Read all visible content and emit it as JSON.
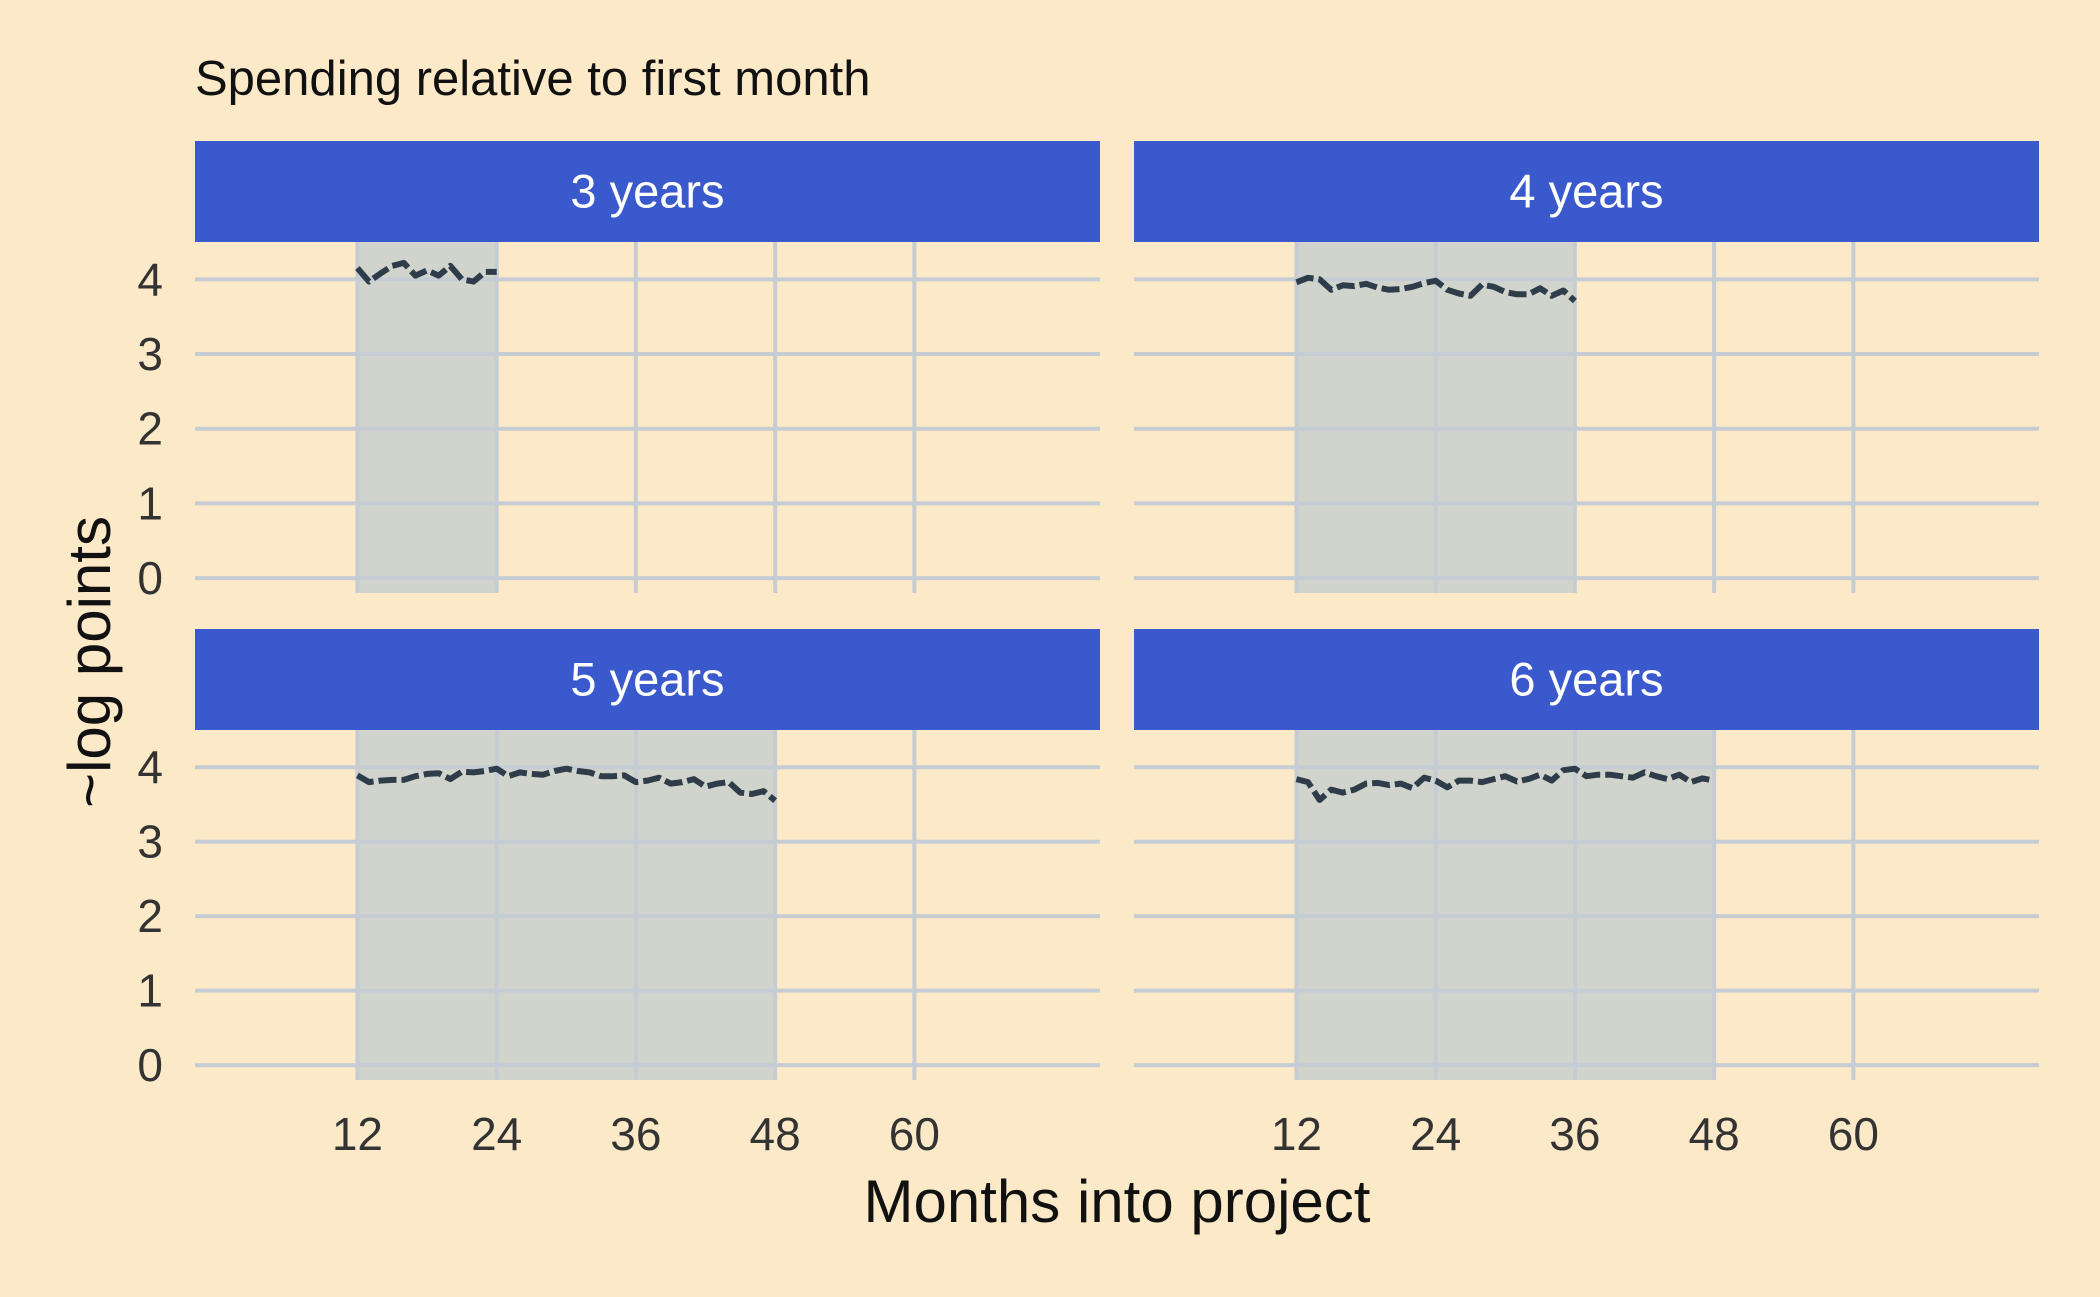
{
  "chart_data": {
    "type": "line",
    "title": "Spending relative to first month",
    "xlabel": "Months into project",
    "ylabel": "~log points",
    "x_ticks": [
      12,
      24,
      36,
      48,
      60
    ],
    "y_ticks": [
      0,
      1,
      2,
      3,
      4
    ],
    "xlim": [
      -2,
      76
    ],
    "ylim": [
      -0.2,
      4.5
    ],
    "grid": true,
    "colors": {
      "background": "#fce9c8",
      "strip": "#3a59cc",
      "line": "#2f3d4a",
      "shade": "#adc3cf",
      "grid": "#c6ccd4"
    },
    "panels": [
      {
        "label": "3 years",
        "shade": [
          12,
          24
        ],
        "x": [
          12,
          13,
          14,
          15,
          16,
          17,
          18,
          19,
          20,
          21,
          22,
          23,
          24
        ],
        "y": [
          4.15,
          3.97,
          4.08,
          4.18,
          4.22,
          4.05,
          4.12,
          4.05,
          4.18,
          4.0,
          3.97,
          4.1,
          4.1
        ]
      },
      {
        "label": "4 years",
        "shade": [
          12,
          36
        ],
        "x": [
          12,
          13,
          14,
          15,
          16,
          17,
          18,
          19,
          20,
          21,
          22,
          23,
          24,
          25,
          26,
          27,
          28,
          29,
          30,
          31,
          32,
          33,
          34,
          35,
          36
        ],
        "y": [
          3.96,
          4.02,
          4.0,
          3.86,
          3.92,
          3.91,
          3.94,
          3.89,
          3.86,
          3.87,
          3.9,
          3.95,
          3.98,
          3.86,
          3.81,
          3.78,
          3.93,
          3.9,
          3.83,
          3.8,
          3.8,
          3.88,
          3.78,
          3.85,
          3.71
        ]
      },
      {
        "label": "5 years",
        "shade": [
          12,
          48
        ],
        "x": [
          12,
          13,
          14,
          15,
          16,
          17,
          18,
          19,
          20,
          21,
          22,
          23,
          24,
          25,
          26,
          27,
          28,
          29,
          30,
          31,
          32,
          33,
          34,
          35,
          36,
          37,
          38,
          39,
          40,
          41,
          42,
          43,
          44,
          45,
          46,
          47,
          48
        ],
        "y": [
          3.89,
          3.8,
          3.82,
          3.83,
          3.83,
          3.88,
          3.91,
          3.92,
          3.84,
          3.94,
          3.93,
          3.95,
          3.98,
          3.88,
          3.93,
          3.91,
          3.9,
          3.95,
          3.98,
          3.95,
          3.93,
          3.88,
          3.88,
          3.89,
          3.8,
          3.82,
          3.86,
          3.78,
          3.8,
          3.84,
          3.74,
          3.78,
          3.8,
          3.66,
          3.64,
          3.68,
          3.55
        ]
      },
      {
        "label": "6 years",
        "shade": [
          12,
          48
        ],
        "x": [
          12,
          13,
          14,
          15,
          16,
          17,
          18,
          19,
          20,
          21,
          22,
          23,
          24,
          25,
          26,
          27,
          28,
          29,
          30,
          31,
          32,
          33,
          34,
          35,
          36,
          37,
          38,
          39,
          40,
          41,
          42,
          43,
          44,
          45,
          46,
          47,
          48
        ],
        "y": [
          3.84,
          3.8,
          3.56,
          3.7,
          3.66,
          3.7,
          3.78,
          3.79,
          3.76,
          3.78,
          3.72,
          3.86,
          3.82,
          3.73,
          3.82,
          3.82,
          3.8,
          3.84,
          3.88,
          3.81,
          3.84,
          3.9,
          3.82,
          3.96,
          3.98,
          3.88,
          3.9,
          3.9,
          3.88,
          3.86,
          3.93,
          3.88,
          3.84,
          3.9,
          3.8,
          3.85,
          3.82
        ]
      }
    ]
  }
}
